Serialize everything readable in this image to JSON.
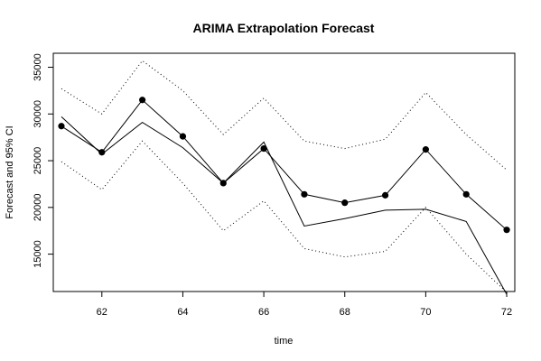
{
  "chart_data": {
    "type": "line",
    "title": "ARIMA Extrapolation Forecast",
    "xlabel": "time",
    "ylabel": "Forecast and 95% CI",
    "xlim": [
      60.8,
      72.2
    ],
    "ylim": [
      11000,
      36500
    ],
    "x_ticks": [
      62,
      64,
      66,
      68,
      70,
      72
    ],
    "y_ticks": [
      15000,
      20000,
      25000,
      30000,
      35000
    ],
    "x": [
      61,
      62,
      63,
      64,
      65,
      66,
      67,
      68,
      69,
      70,
      71,
      72
    ],
    "series": [
      {
        "style": "points-line",
        "values": [
          28700,
          25900,
          31500,
          27600,
          22600,
          26300,
          21400,
          20500,
          21300,
          26200,
          21400,
          17600
        ]
      },
      {
        "style": "line",
        "values": [
          29700,
          25700,
          29100,
          26400,
          22600,
          27000,
          18000,
          18800,
          19700,
          19800,
          18500,
          10700
        ]
      },
      {
        "style": "dotted",
        "values": [
          32700,
          30000,
          35700,
          32500,
          27800,
          31700,
          27100,
          26300,
          27300,
          32300,
          27800,
          24000
        ]
      },
      {
        "style": "dotted",
        "values": [
          24900,
          21900,
          27100,
          22600,
          17500,
          20700,
          15600,
          14700,
          15300,
          20000,
          15000,
          10900
        ]
      }
    ]
  }
}
